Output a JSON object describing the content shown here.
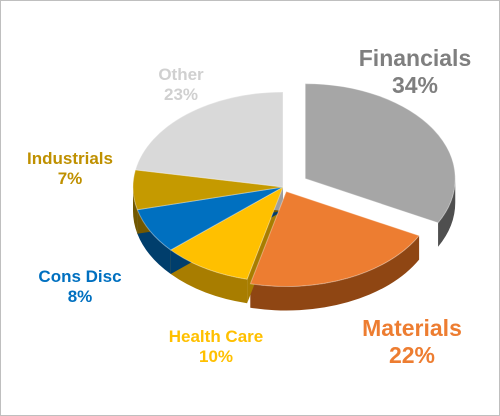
{
  "chart_data": {
    "type": "pie",
    "style": "3D exploded pie",
    "legend": "none",
    "slices": [
      {
        "name": "Financials",
        "value": 34,
        "label_value": "34%",
        "color": "#a6a6a6",
        "side_color": "#4f4f4f"
      },
      {
        "name": "Materials",
        "value": 22,
        "label_value": "22%",
        "color": "#ed7d31",
        "side_color": "#8f4613"
      },
      {
        "name": "Health Care",
        "value": 10,
        "label_value": "10%",
        "color": "#ffc000",
        "side_color": "#a87d00"
      },
      {
        "name": "Cons Disc",
        "value": 8,
        "label_value": "8%",
        "color": "#0070c0",
        "side_color": "#003e6c"
      },
      {
        "name": "Industrials",
        "value": 7,
        "label_value": "7%",
        "color": "#c59a00",
        "side_color": "#725800"
      },
      {
        "name": "Other",
        "value": 23,
        "label_value": "23%",
        "color": "#d9d9d9",
        "side_color": "#9e9e9e"
      }
    ],
    "label_colors": [
      "#7f7f7f",
      "#ed7d31",
      "#ffc000",
      "#0070c0",
      "#bf9000",
      "#d0d0d0"
    ]
  }
}
